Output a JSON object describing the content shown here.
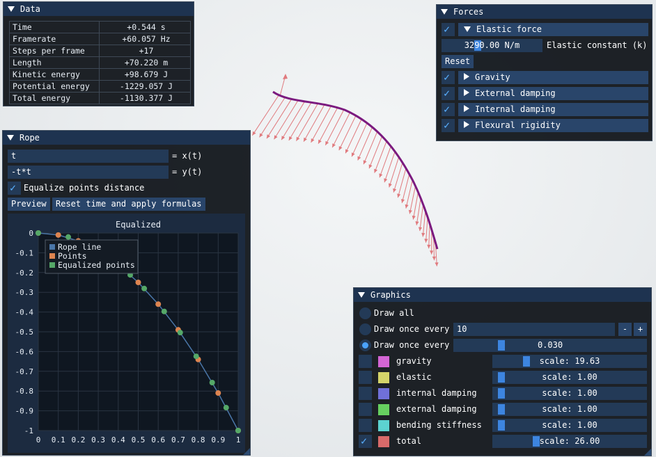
{
  "data_window": {
    "title": "Data",
    "rows": [
      {
        "key": "Time",
        "value": "+0.544 s"
      },
      {
        "key": "Framerate",
        "value": "+60.057 Hz"
      },
      {
        "key": "Steps per frame",
        "value": "+17"
      },
      {
        "key": "Length",
        "value": "+70.220 m"
      },
      {
        "key": "Kinetic energy",
        "value": "+98.679 J"
      },
      {
        "key": "Potential energy",
        "value": "-1229.057 J"
      },
      {
        "key": "Total energy",
        "value": "-1130.377 J"
      }
    ]
  },
  "rope_window": {
    "title": "Rope",
    "x_formula": "t",
    "x_label": "= x(t)",
    "y_formula": "-t*t",
    "y_label": "= y(t)",
    "equalize_label": "Equalize points distance",
    "preview_label": "Preview",
    "reset_label": "Reset time and apply formulas"
  },
  "forces_window": {
    "title": "Forces",
    "elastic_header": "Elastic force",
    "elastic_value": "3290.00 N/m",
    "elastic_label": "Elastic constant (k)",
    "reset_label": "Reset",
    "sections": [
      "Gravity",
      "External damping",
      "Internal damping",
      "Flexural rigidity"
    ]
  },
  "graphics_window": {
    "title": "Graphics",
    "draw_all": "Draw all",
    "draw_once_every": "Draw once every",
    "draw_every_frames": "10",
    "draw_every_time": "0.030",
    "minus": "-",
    "plus": "+",
    "forces": [
      {
        "name": "gravity",
        "scale": "scale: 19.63",
        "color": "#d365d4",
        "checked": false,
        "level": 0.2
      },
      {
        "name": "elastic",
        "scale": "scale: 1.00",
        "color": "#d4d46a",
        "checked": false,
        "level": 0.02
      },
      {
        "name": "internal damping",
        "scale": "scale: 1.00",
        "color": "#7070d8",
        "checked": false,
        "level": 0.02
      },
      {
        "name": "external damping",
        "scale": "scale: 1.00",
        "color": "#66d060",
        "checked": false,
        "level": 0.02
      },
      {
        "name": "bending stiffness",
        "scale": "scale: 1.00",
        "color": "#5cd2d0",
        "checked": false,
        "level": 0.02
      },
      {
        "name": "total",
        "scale": "scale: 26.00",
        "color": "#d86a6a",
        "checked": true,
        "level": 0.27
      }
    ]
  },
  "colors": {
    "rope": "#7b1a7f",
    "force_arrows": "#e07a7e",
    "header": "#1e3350",
    "accent": "#4aa3ff"
  },
  "chart_data": {
    "type": "scatter",
    "title": "Equalized",
    "xlim": [
      0,
      1
    ],
    "ylim": [
      -1,
      0
    ],
    "x_ticks": [
      "0",
      "0.1",
      "0.2",
      "0.3",
      "0.4",
      "0.5",
      "0.6",
      "0.7",
      "0.8",
      "0.9",
      "1"
    ],
    "y_ticks": [
      "0",
      "-0.1",
      "-0.2",
      "-0.3",
      "-0.4",
      "-0.5",
      "-0.6",
      "-0.7",
      "-0.8",
      "-0.9",
      "-1"
    ],
    "legend": [
      "Rope line",
      "Points",
      "Equalized points"
    ],
    "legend_placement": "top-left",
    "grid": true,
    "series": [
      {
        "name": "Rope line",
        "color": "#4a76a8",
        "x": [
          0,
          0.1,
          0.2,
          0.3,
          0.4,
          0.5,
          0.6,
          0.7,
          0.8,
          0.9,
          1.0
        ],
        "y": [
          0,
          -0.01,
          -0.04,
          -0.09,
          -0.16,
          -0.25,
          -0.36,
          -0.49,
          -0.64,
          -0.81,
          -1.0
        ]
      },
      {
        "name": "Points",
        "color": "#dd8450",
        "x": [
          0,
          0.1,
          0.2,
          0.3,
          0.4,
          0.5,
          0.6,
          0.7,
          0.8,
          0.9,
          1.0
        ],
        "y": [
          0,
          -0.01,
          -0.04,
          -0.09,
          -0.16,
          -0.25,
          -0.36,
          -0.49,
          -0.64,
          -0.81,
          -1.0
        ]
      },
      {
        "name": "Equalized points",
        "color": "#55a868",
        "x": [
          0,
          0.15,
          0.27,
          0.37,
          0.46,
          0.53,
          0.63,
          0.71,
          0.79,
          0.87,
          0.94,
          1.0
        ],
        "y": [
          0,
          -0.02,
          -0.073,
          -0.137,
          -0.212,
          -0.281,
          -0.397,
          -0.504,
          -0.624,
          -0.757,
          -0.884,
          -1.0
        ]
      }
    ]
  }
}
